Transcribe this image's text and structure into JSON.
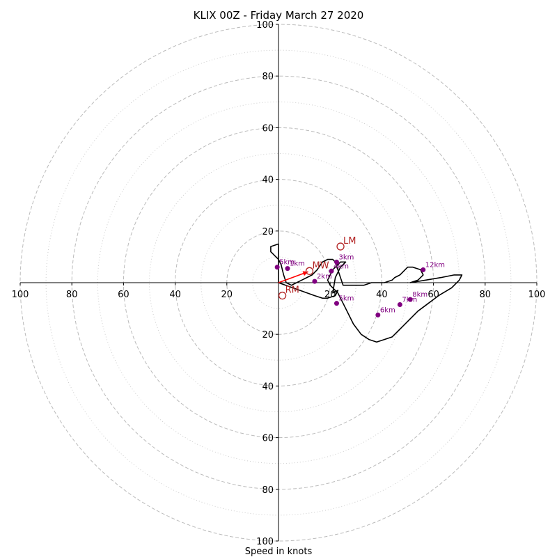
{
  "chart_data": {
    "type": "line",
    "title": "KLIX 00Z - Friday March 27 2020",
    "xlabel": "Speed in knots",
    "ylabel": "",
    "xlim": [
      -100,
      100
    ],
    "ylim": [
      -100,
      100
    ],
    "rings_major": [
      20,
      40,
      60,
      80,
      100
    ],
    "rings_minor": [
      10,
      30,
      50,
      70,
      90
    ],
    "tick_labels": {
      "x_left": [
        "100",
        "80",
        "60",
        "40",
        "20"
      ],
      "x_right": [
        "20",
        "40",
        "60",
        "80",
        "100"
      ],
      "y_top": [
        "20",
        "40",
        "60",
        "80",
        "100"
      ],
      "y_bottom": [
        "20",
        "40",
        "60",
        "80",
        "100"
      ]
    },
    "series": [
      {
        "u": [
          0,
          14,
          17,
          19,
          22,
          23,
          21,
          22,
          24,
          26,
          24,
          23,
          21,
          20,
          19,
          20,
          23,
          25,
          27,
          29,
          32,
          35,
          38,
          41,
          44,
          46,
          48,
          51,
          54,
          58,
          62,
          67,
          70,
          71,
          68,
          63,
          57,
          51,
          51,
          54,
          56,
          55,
          52,
          50,
          49,
          48,
          47,
          45,
          44,
          41,
          39,
          36,
          33,
          30,
          27,
          26,
          25,
          24,
          23,
          22,
          21,
          20,
          19,
          17,
          15,
          13,
          11,
          9,
          7,
          5,
          3,
          2,
          1,
          0,
          -1,
          -2,
          -3,
          -3,
          0,
          0
        ],
        "v": [
          0,
          -5,
          -6,
          -6,
          -5,
          -3,
          -4,
          2,
          6,
          8,
          8,
          7,
          5,
          3,
          1,
          -1,
          -4,
          -8,
          -12,
          -16,
          -20,
          -22,
          -23,
          -22,
          -21,
          -19,
          -17,
          -14,
          -11,
          -8,
          -5,
          -2,
          1,
          3,
          3,
          2,
          1,
          0,
          0,
          1,
          3,
          5,
          6,
          6,
          5,
          4,
          3,
          2,
          1,
          0,
          0,
          0,
          -1,
          -1,
          -1,
          -1,
          -1,
          2,
          5,
          8,
          9,
          9,
          9,
          8,
          5,
          3,
          2,
          1,
          0,
          -1,
          0,
          3,
          7,
          9,
          10,
          11,
          12,
          14,
          15,
          0
        ]
      }
    ],
    "height_markers": [
      {
        "label": "1km",
        "u": 3.5,
        "v": 5.5
      },
      {
        "label": "2km",
        "u": 14,
        "v": 0.5
      },
      {
        "label": "3km",
        "u": 22.5,
        "v": 8
      },
      {
        "label": "4km",
        "u": 20.5,
        "v": 4.5
      },
      {
        "label": "5km",
        "u": 22.5,
        "v": -8
      },
      {
        "label": "6km",
        "u": 38.5,
        "v": -12.5
      },
      {
        "label": "7km",
        "u": 47,
        "v": -8.5
      },
      {
        "label": "8km",
        "u": 51,
        "v": -6.5
      },
      {
        "label": "12km",
        "u": 56,
        "v": 5
      },
      {
        "label": "5km",
        "u": -0.5,
        "v": 6
      }
    ],
    "storm_motion": [
      {
        "label": "LM",
        "u": 24,
        "v": 14
      },
      {
        "label": "MW",
        "u": 12,
        "v": 4.5
      },
      {
        "label": "RM",
        "u": 1.5,
        "v": -5
      }
    ],
    "colors": {
      "hodograph": "#000000",
      "height_marker": "#800080",
      "storm_motion": "#b22222",
      "mean_wind_vector": "#ff0000",
      "grid": "#bbbbbb"
    }
  }
}
